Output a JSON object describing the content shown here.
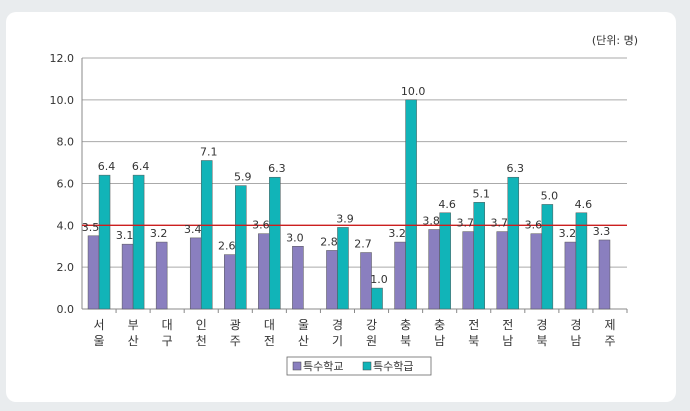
{
  "chart_data": {
    "type": "bar",
    "unit_label": "(단위:  명)",
    "categories": [
      "서울",
      "부산",
      "대구",
      "인천",
      "광주",
      "대전",
      "울산",
      "경기",
      "강원",
      "충북",
      "충남",
      "전북",
      "전남",
      "경북",
      "경남",
      "제주"
    ],
    "series": [
      {
        "name": "특수학교",
        "color": "#8a7fbf",
        "values": [
          3.5,
          3.1,
          3.2,
          3.4,
          2.6,
          3.6,
          3.0,
          2.8,
          2.7,
          3.2,
          3.8,
          3.7,
          3.7,
          3.6,
          3.2,
          3.3
        ]
      },
      {
        "name": "특수학급",
        "color": "#11b4b8",
        "values": [
          6.4,
          6.4,
          null,
          7.1,
          5.9,
          6.3,
          null,
          3.9,
          1.0,
          10.0,
          4.6,
          5.1,
          6.3,
          5.0,
          4.6,
          null
        ]
      }
    ],
    "ylim": [
      0,
      12
    ],
    "yticks": [
      "0.0",
      "2.0",
      "4.0",
      "6.0",
      "8.0",
      "10.0",
      "12.0"
    ],
    "reference_line": {
      "value": 4.0,
      "color": "#cc1f1f"
    },
    "grid": true,
    "legend": "bottom"
  }
}
